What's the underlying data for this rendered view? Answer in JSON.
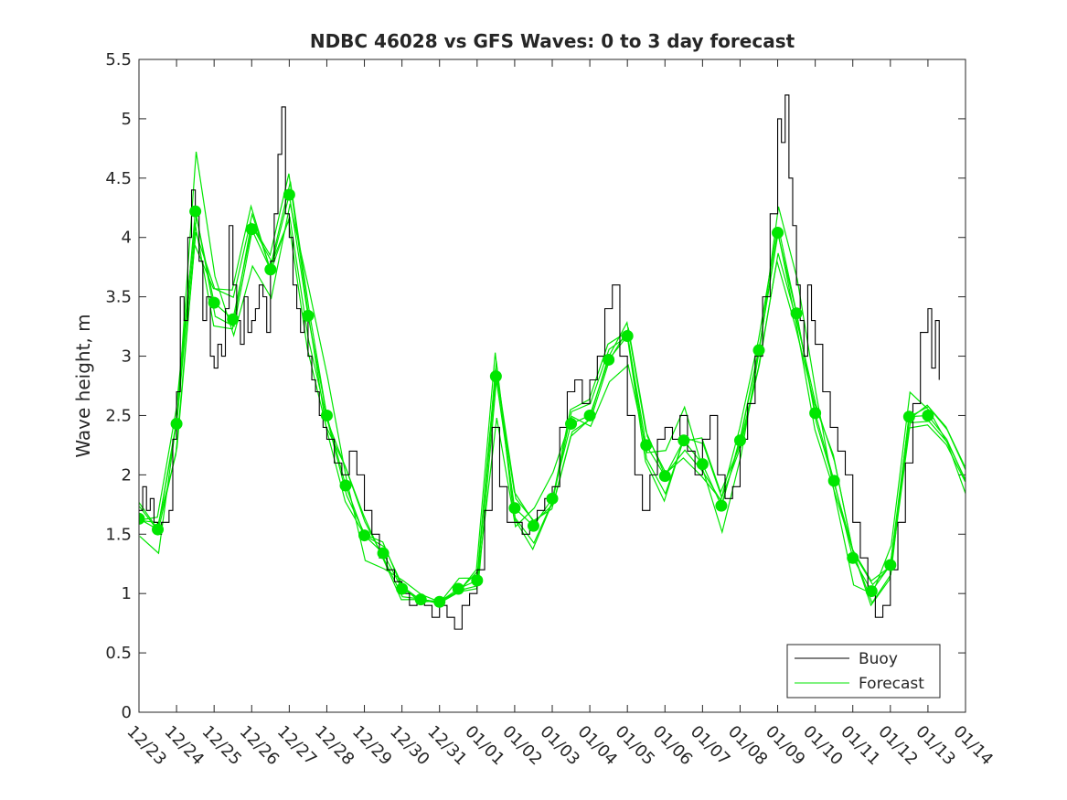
{
  "chart_data": {
    "type": "line",
    "title": "NDBC 46028 vs GFS Waves: 0 to 3 day forecast",
    "xlabel": "",
    "ylabel": "Wave height, m",
    "ylim": [
      0,
      5.5
    ],
    "yticks": [
      "0",
      "0.5",
      "1",
      "1.5",
      "2",
      "2.5",
      "3",
      "3.5",
      "4",
      "4.5",
      "5",
      "5.5"
    ],
    "xlim": [
      0,
      22
    ],
    "xticks": [
      "12/23",
      "12/24",
      "12/25",
      "12/26",
      "12/27",
      "12/28",
      "12/29",
      "12/30",
      "12/31",
      "01/01",
      "01/02",
      "01/03",
      "01/04",
      "01/05",
      "01/06",
      "01/07",
      "01/08",
      "01/09",
      "01/10",
      "01/11",
      "01/12",
      "01/13",
      "01/14"
    ],
    "legend": {
      "position": "bottom-right",
      "entries": [
        "Buoy",
        "Forecast"
      ]
    },
    "colors": {
      "buoy": "#000000",
      "forecast": "#00e600",
      "axis": "#262626"
    },
    "series": [
      {
        "name": "Buoy",
        "x": [
          0,
          0.1,
          0.2,
          0.3,
          0.4,
          0.5,
          0.6,
          0.7,
          0.8,
          0.9,
          1.0,
          1.1,
          1.2,
          1.3,
          1.4,
          1.5,
          1.6,
          1.7,
          1.8,
          1.9,
          2.0,
          2.1,
          2.2,
          2.3,
          2.4,
          2.5,
          2.6,
          2.7,
          2.8,
          2.9,
          3.0,
          3.1,
          3.2,
          3.3,
          3.4,
          3.5,
          3.6,
          3.7,
          3.8,
          3.9,
          4.0,
          4.1,
          4.2,
          4.3,
          4.4,
          4.5,
          4.6,
          4.7,
          4.8,
          4.9,
          5.0,
          5.2,
          5.4,
          5.6,
          5.8,
          6.0,
          6.2,
          6.4,
          6.6,
          6.8,
          7.0,
          7.2,
          7.4,
          7.6,
          7.8,
          8.0,
          8.2,
          8.4,
          8.6,
          8.8,
          9.0,
          9.2,
          9.4,
          9.6,
          9.8,
          10.0,
          10.2,
          10.4,
          10.6,
          10.8,
          11.0,
          11.2,
          11.4,
          11.6,
          11.8,
          12.0,
          12.2,
          12.4,
          12.6,
          12.8,
          13.0,
          13.2,
          13.4,
          13.6,
          13.8,
          14.0,
          14.2,
          14.4,
          14.6,
          14.8,
          15.0,
          15.2,
          15.4,
          15.6,
          15.8,
          16.0,
          16.2,
          16.4,
          16.6,
          16.8,
          17.0,
          17.1,
          17.2,
          17.3,
          17.4,
          17.5,
          17.6,
          17.7,
          17.8,
          17.9,
          18.0,
          18.2,
          18.4,
          18.6,
          18.8,
          19.0,
          19.2,
          19.4,
          19.6,
          19.8,
          20.0,
          20.2,
          20.4,
          20.6,
          20.8,
          21.0,
          21.1,
          21.2,
          21.3
        ],
        "values": [
          1.7,
          1.9,
          1.7,
          1.8,
          1.6,
          1.5,
          1.6,
          1.6,
          1.7,
          2.3,
          2.7,
          3.5,
          3.3,
          4.0,
          4.4,
          4.2,
          3.8,
          3.3,
          3.5,
          3.0,
          2.9,
          3.1,
          3.0,
          3.4,
          4.1,
          3.6,
          3.3,
          3.1,
          3.5,
          3.2,
          3.3,
          3.4,
          3.6,
          3.5,
          3.2,
          3.8,
          4.2,
          4.7,
          5.1,
          4.2,
          4.0,
          3.6,
          3.4,
          3.2,
          3.3,
          3.0,
          2.8,
          2.7,
          2.5,
          2.4,
          2.3,
          2.1,
          2.0,
          2.2,
          2.0,
          1.7,
          1.5,
          1.3,
          1.2,
          1.1,
          1.0,
          0.9,
          0.95,
          0.9,
          0.8,
          0.9,
          0.8,
          0.7,
          0.9,
          1.0,
          1.2,
          1.7,
          2.4,
          1.9,
          1.6,
          1.6,
          1.5,
          1.6,
          1.7,
          1.8,
          1.9,
          2.4,
          2.7,
          2.8,
          2.6,
          2.8,
          3.0,
          3.4,
          3.6,
          3.0,
          2.5,
          2.0,
          1.7,
          2.0,
          2.3,
          2.4,
          2.3,
          2.5,
          2.2,
          2.0,
          2.3,
          2.5,
          2.0,
          1.8,
          1.9,
          2.3,
          2.6,
          3.0,
          3.5,
          4.2,
          5.0,
          4.8,
          5.2,
          4.5,
          4.1,
          3.6,
          3.3,
          3.0,
          3.6,
          3.3,
          3.1,
          2.7,
          2.4,
          2.2,
          2.0,
          1.6,
          1.3,
          1.0,
          0.8,
          0.9,
          1.2,
          1.6,
          2.1,
          2.6,
          3.2,
          3.4,
          2.9,
          3.3,
          2.8
        ]
      },
      {
        "name": "Forecast",
        "x": [
          0,
          0.5,
          1.0,
          1.5,
          2.0,
          2.5,
          3.0,
          3.5,
          4.0,
          4.5,
          5.0,
          5.5,
          6.0,
          6.5,
          7.0,
          7.5,
          8.0,
          8.5,
          9.0,
          9.5,
          10.0,
          10.5,
          11.0,
          11.5,
          12.0,
          12.5,
          13.0,
          13.5,
          14.0,
          14.5,
          15.0,
          15.5,
          16.0,
          16.5,
          17.0,
          17.5,
          18.0,
          18.5,
          19.0,
          19.5,
          20.0,
          20.5,
          21.0,
          21.5,
          22.0
        ],
        "values": [
          1.63,
          1.54,
          2.43,
          4.22,
          3.45,
          3.31,
          4.07,
          3.73,
          4.36,
          3.34,
          2.5,
          1.91,
          1.49,
          1.34,
          1.04,
          0.95,
          0.93,
          1.04,
          1.11,
          2.83,
          1.72,
          1.57,
          1.8,
          2.43,
          2.5,
          2.97,
          3.17,
          2.25,
          1.99,
          2.29,
          2.09,
          1.74,
          2.29,
          3.05,
          4.04,
          3.36,
          2.52,
          1.95,
          1.3,
          1.02,
          1.24,
          2.49,
          2.5,
          2.3,
          1.95
        ]
      }
    ]
  }
}
